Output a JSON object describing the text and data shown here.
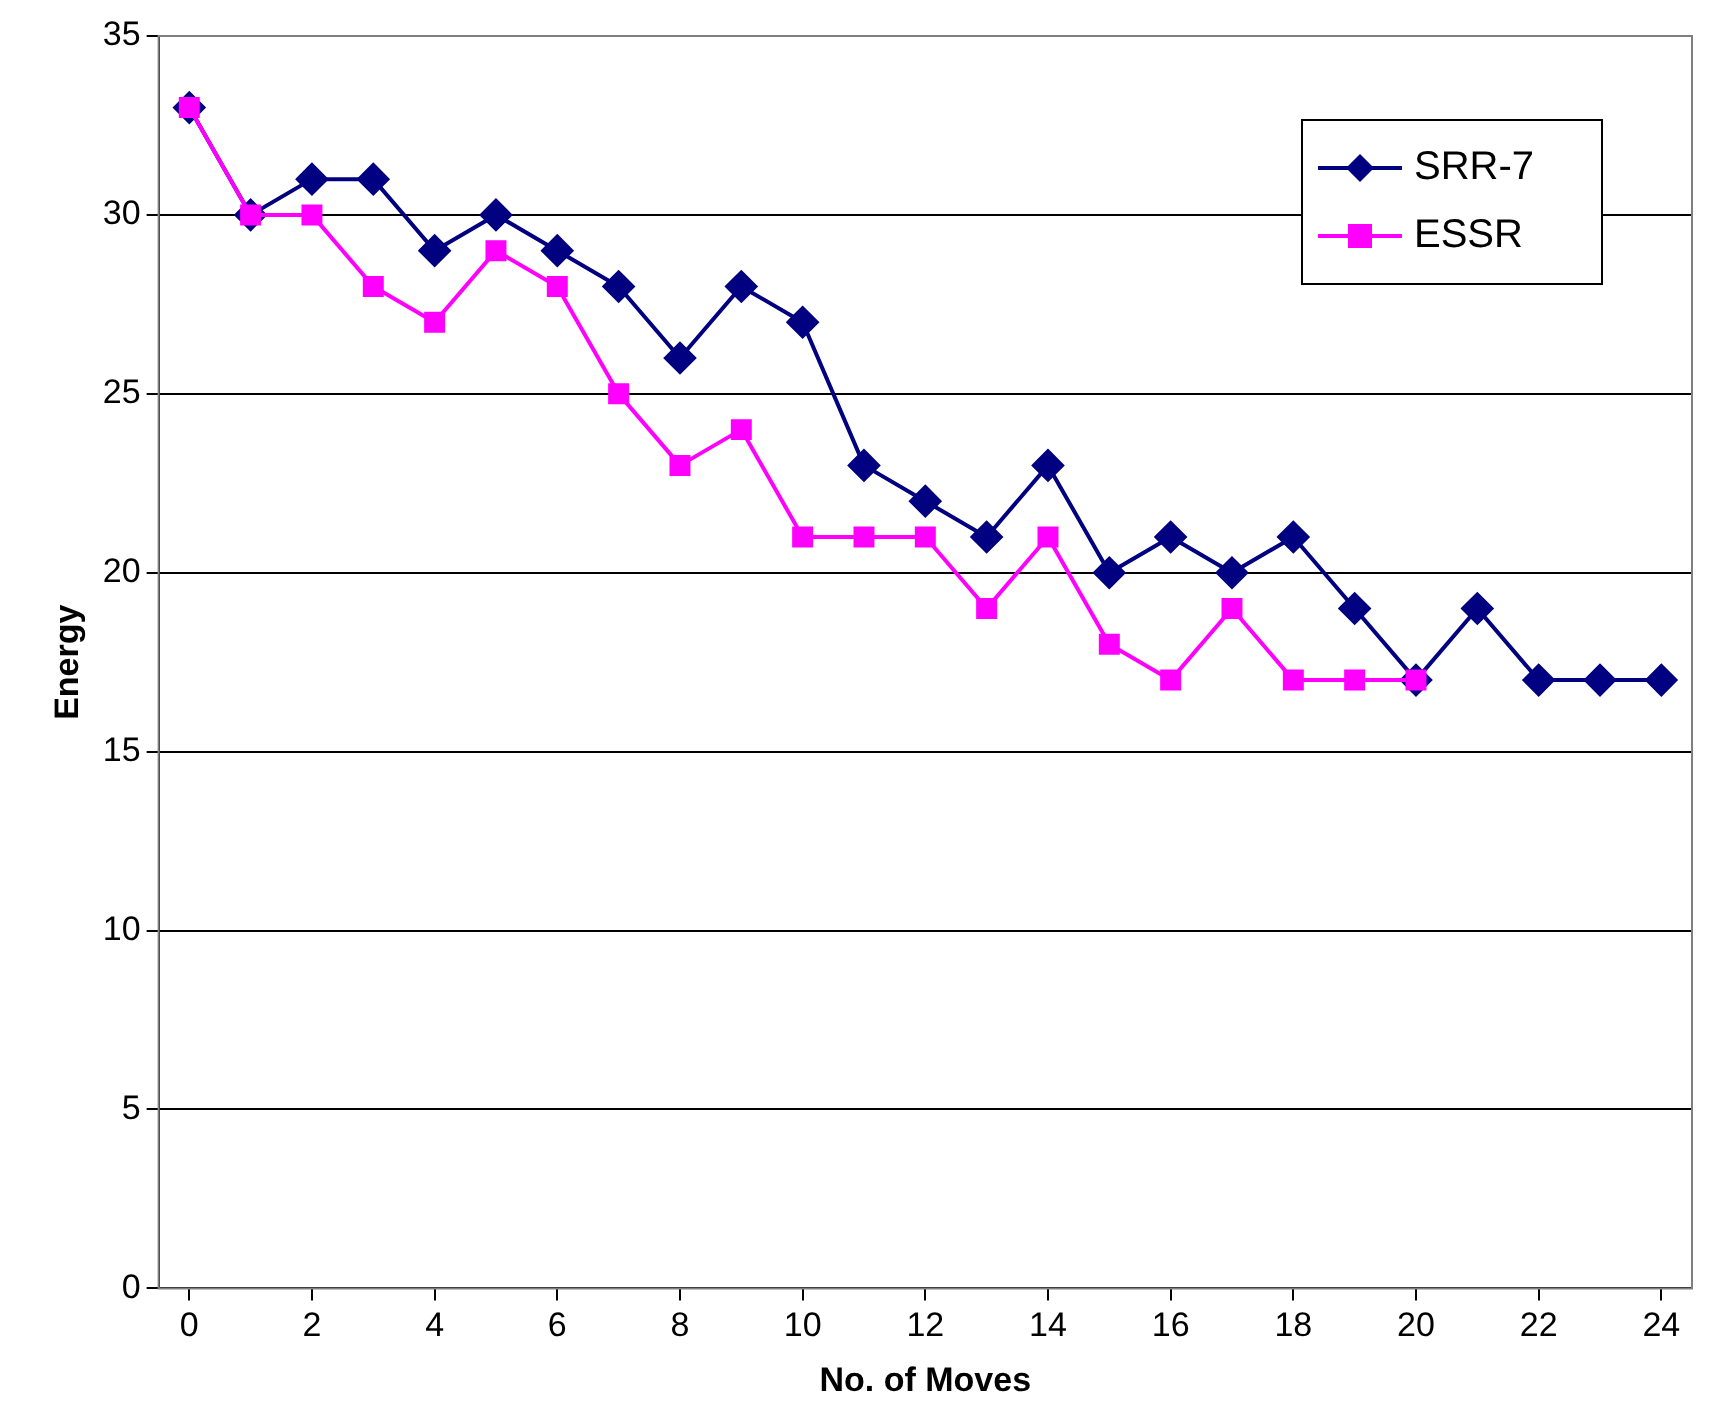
{
  "chart_data": {
    "type": "line",
    "xlabel": "No. of Moves",
    "ylabel": "Energy",
    "x": [
      0,
      1,
      2,
      3,
      4,
      5,
      6,
      7,
      8,
      9,
      10,
      11,
      12,
      13,
      14,
      15,
      16,
      17,
      18,
      19,
      20,
      21,
      22,
      23,
      24
    ],
    "xlim": [
      -0.5,
      24.5
    ],
    "xticks": [
      0,
      2,
      4,
      6,
      8,
      10,
      12,
      14,
      16,
      18,
      20,
      22,
      24
    ],
    "series": [
      {
        "name": "SRR-7",
        "color": "#000080",
        "marker": "diamond",
        "values": [
          33,
          30,
          31,
          31,
          29,
          30,
          29,
          28,
          26,
          28,
          27,
          23,
          22,
          21,
          23,
          20,
          21,
          20,
          21,
          19,
          17,
          19,
          17,
          17,
          17
        ]
      },
      {
        "name": "ESSR",
        "color": "#ff00ff",
        "marker": "square",
        "values": [
          33,
          30,
          30,
          28,
          27,
          29,
          28,
          25,
          23,
          24,
          21,
          21,
          21,
          19,
          21,
          18,
          17,
          19,
          17,
          17,
          17,
          null,
          null,
          null,
          null
        ]
      }
    ],
    "ylim": [
      0,
      35
    ],
    "yticks": [
      0,
      5,
      10,
      15,
      20,
      25,
      30,
      35
    ],
    "grid": "y",
    "legend": "top right",
    "line_style": "solid"
  }
}
